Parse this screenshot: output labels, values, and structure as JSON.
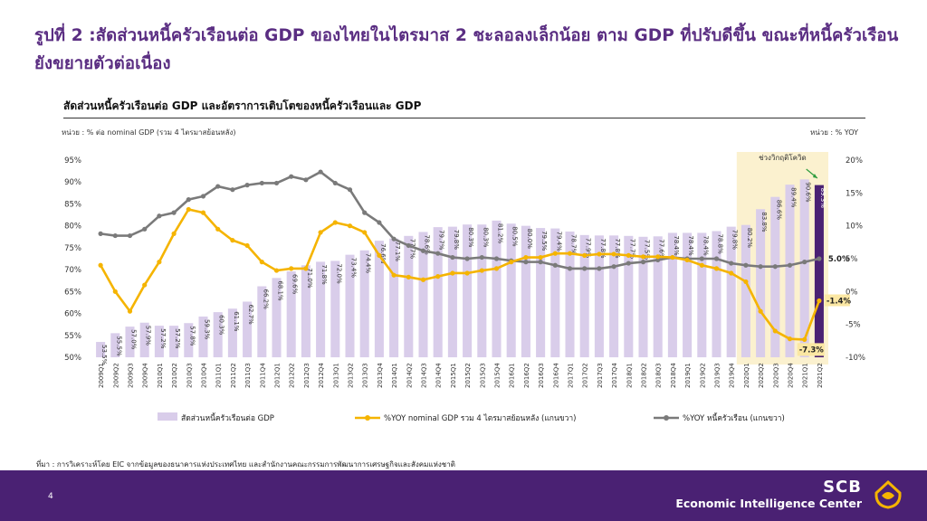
{
  "page": {
    "title": "รูปที่ 2 :สัดส่วนหนี้ครัวเรือนต่อ GDP ของไทยในไตรมาส 2 ชะลอลงเล็กน้อย ตาม GDP ที่ปรับดีขึ้น ขณะที่หนี้ครัวเรือนยังขยายตัวต่อเนื่อง",
    "source": "ที่มา : การวิเคราะห์โดย EIC จากข้อมูลของธนาคารแห่งประเทศไทย และสำนักงานคณะกรรมการพัฒนาการเศรษฐกิจและสังคมแห่งชาติ",
    "page_number": "4",
    "logo_scb": "SCB",
    "logo_eic": "Economic Intelligence Center"
  },
  "chart_data": {
    "type": "bar",
    "title": "สัดส่วนหนี้ครัวเรือนต่อ GDP และอัตราการเติบโตของหนี้ครัวเรือนและ GDP",
    "unit_left": "หน่วย : % ต่อ nominal GDP (รวม 4 ไตรมาสย้อนหลัง)",
    "unit_right": "หน่วย : % YOY",
    "covid_label": "ช่วงวิกฤติโควิด",
    "y_left": {
      "min": 50,
      "max": 95,
      "ticks": [
        "95%",
        "90%",
        "85%",
        "80%",
        "75%",
        "70%",
        "65%",
        "60%",
        "55%",
        "50%"
      ]
    },
    "y_right": {
      "min": -10,
      "max": 20,
      "ticks": [
        "20%",
        "15%",
        "10%",
        "5%",
        "0%",
        "-5%",
        "-10%"
      ]
    },
    "categories": [
      "2009Q1",
      "2009Q2",
      "2009Q3",
      "2009Q4",
      "2010Q1",
      "2010Q2",
      "2010Q3",
      "2010Q4",
      "2011Q1",
      "2011Q2",
      "2011Q3",
      "2011Q4",
      "2012Q1",
      "2012Q2",
      "2012Q3",
      "2012Q4",
      "2013Q1",
      "2013Q2",
      "2013Q3",
      "2013Q4",
      "2014Q1",
      "2014Q2",
      "2014Q3",
      "2014Q4",
      "2015Q1",
      "2015Q2",
      "2015Q3",
      "2015Q4",
      "2016Q1",
      "2016Q2",
      "2016Q3",
      "2016Q4",
      "2017Q1",
      "2017Q2",
      "2017Q3",
      "2017Q4",
      "2018Q1",
      "2018Q2",
      "2018Q3",
      "2018Q4",
      "2019Q1",
      "2019Q2",
      "2019Q3",
      "2019Q4",
      "2020Q1",
      "2020Q2",
      "2020Q3",
      "2020Q4",
      "2021Q1",
      "2021Q2"
    ],
    "series": [
      {
        "name": "สัดส่วนหนี้ครัวเรือนต่อ GDP",
        "axis": "left",
        "color": "#d9cdea",
        "values": [
          53.5,
          55.5,
          57.0,
          57.9,
          57.2,
          57.2,
          57.8,
          59.3,
          60.3,
          61.1,
          62.7,
          66.2,
          68.1,
          69.6,
          71.0,
          71.8,
          72.0,
          73.4,
          74.4,
          76.6,
          77.1,
          77.7,
          78.6,
          79.7,
          79.8,
          80.3,
          80.3,
          81.2,
          80.5,
          80.0,
          79.5,
          79.4,
          78.7,
          77.9,
          77.8,
          77.8,
          77.7,
          77.5,
          77.6,
          78.4,
          78.4,
          78.4,
          78.8,
          79.8,
          80.2,
          83.8,
          86.6,
          89.4,
          90.6,
          89.3
        ],
        "labels": [
          "53.5%",
          "55.5%",
          "57.0%",
          "57.9%",
          "57.2%",
          "57.2%",
          "57.8%",
          "59.3%",
          "60.3%",
          "61.1%",
          "62.7%",
          "66.2%",
          "68.1%",
          "69.6%",
          "71.0%",
          "71.8%",
          "72.0%",
          "73.4%",
          "74.4%",
          "76.6%",
          "77.1%",
          "77.7%",
          "78.6%",
          "79.7%",
          "79.8%",
          "80.3%",
          "80.3%",
          "81.2%",
          "80.5%",
          "80.0%",
          "79.5%",
          "79.4%",
          "78.7%",
          "77.9%",
          "77.8%",
          "77.8%",
          "77.7%",
          "77.5%",
          "77.6%",
          "78.4%",
          "78.4%",
          "78.4%",
          "78.8%",
          "79.8%",
          "80.2%",
          "83.8%",
          "86.6%",
          "89.4%",
          "90.6%",
          "89.3%"
        ]
      },
      {
        "name": "%YOY nominal GDP รวม 4 ไตรมาสย้อนหลัง (แกนขวา)",
        "axis": "right",
        "color": "#f5b400",
        "values": [
          4.0,
          0.0,
          -3.0,
          1.0,
          4.5,
          8.8,
          12.5,
          12.0,
          9.5,
          7.8,
          7.0,
          4.5,
          3.2,
          3.5,
          3.5,
          9.0,
          10.5,
          10.0,
          9.0,
          5.5,
          2.5,
          2.2,
          1.8,
          2.3,
          2.8,
          2.8,
          3.2,
          3.5,
          4.5,
          5.2,
          5.2,
          5.8,
          5.8,
          5.5,
          5.7,
          5.7,
          5.5,
          5.3,
          5.3,
          5.2,
          4.8,
          4.0,
          3.5,
          2.8,
          1.5,
          -3.0,
          -6.0,
          -7.2,
          -7.3,
          -1.4
        ]
      },
      {
        "name": "%YOY หนี้ครัวเรือน (แกนขวา)",
        "axis": "right",
        "color": "#7a7a7a",
        "values": [
          8.8,
          8.5,
          8.5,
          9.5,
          11.5,
          12.0,
          14.0,
          14.5,
          16.0,
          15.5,
          16.2,
          16.5,
          16.5,
          17.5,
          17.0,
          18.2,
          16.5,
          15.5,
          12.0,
          10.5,
          8.0,
          7.0,
          6.2,
          5.8,
          5.2,
          5.0,
          5.2,
          5.0,
          4.7,
          4.5,
          4.5,
          4.0,
          3.5,
          3.5,
          3.5,
          3.8,
          4.3,
          4.5,
          4.8,
          5.2,
          5.0,
          5.0,
          5.0,
          4.3,
          4.0,
          3.8,
          3.8,
          4.0,
          4.5,
          5.0
        ]
      }
    ],
    "annotations": {
      "debt_growth_last": "5.0%",
      "gdp_growth_last": "-1.4%",
      "gdp_growth_low": "-7.3%"
    },
    "legend_position": "bottom",
    "grid": false
  }
}
